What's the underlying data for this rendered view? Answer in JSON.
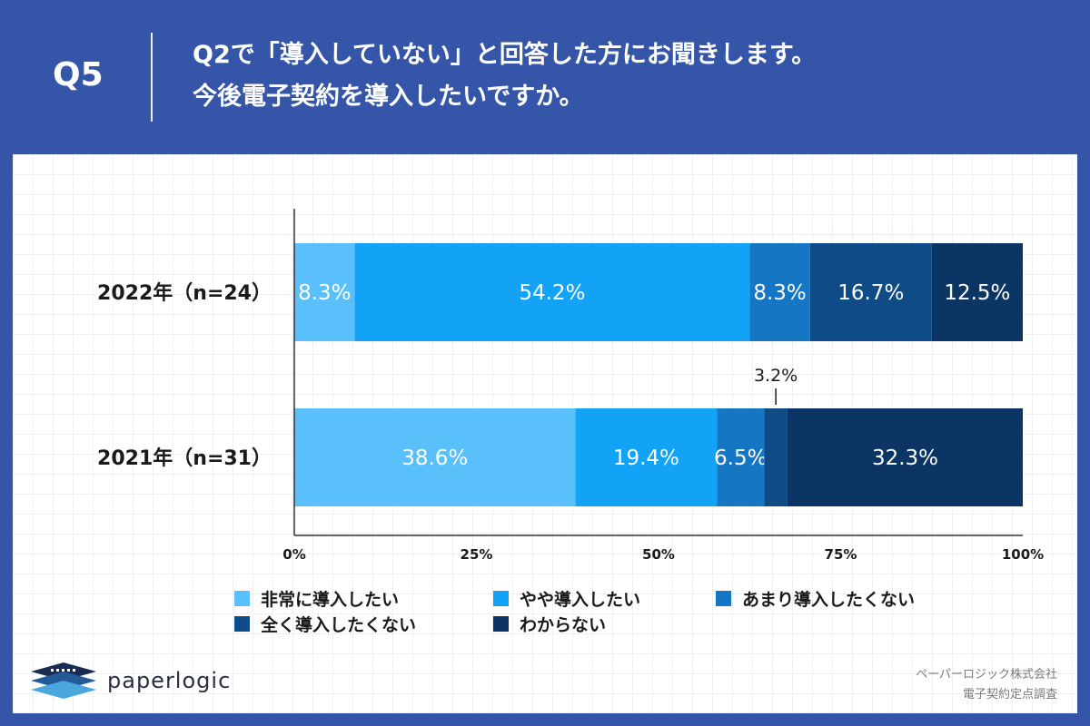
{
  "header": {
    "qnum": "Q5",
    "title_line1": "Q2で「導入していない」と回答した方にお聞きします。",
    "title_line2": "今後電子契約を導入したいですか。"
  },
  "colors": {
    "header_bg": "#3556a8",
    "series": [
      "#5ac0fb",
      "#12a3f6",
      "#1577c4",
      "#0f4b86",
      "#0b3564"
    ]
  },
  "chart_data": {
    "type": "bar",
    "orientation": "horizontal",
    "stacked": true,
    "categories": [
      "2022年（n=24）",
      "2021年（n=31）"
    ],
    "series": [
      {
        "name": "非常に導入したい",
        "values": [
          8.3,
          38.6
        ],
        "labels": [
          "8.3%",
          "38.6%"
        ]
      },
      {
        "name": "やや導入したい",
        "values": [
          54.2,
          19.4
        ],
        "labels": [
          "54.2%",
          "19.4%"
        ]
      },
      {
        "name": "あまり導入したくない",
        "values": [
          8.3,
          6.5
        ],
        "labels": [
          "8.3%",
          "6.5%"
        ]
      },
      {
        "name": "全く導入したくない",
        "values": [
          16.7,
          3.2
        ],
        "labels": [
          "16.7%",
          "3.2%"
        ]
      },
      {
        "name": "わからない",
        "values": [
          12.5,
          32.3
        ],
        "labels": [
          "12.5%",
          "32.3%"
        ]
      }
    ],
    "xlim": [
      0,
      100
    ],
    "xticks": [
      "0%",
      "25%",
      "50%",
      "75%",
      "100%"
    ],
    "grid": false,
    "legend_position": "bottom"
  },
  "footer": {
    "logo_text": "paperlogic",
    "source_line1": "ペーパーロジック株式会社",
    "source_line2": "電子契約定点調査"
  }
}
